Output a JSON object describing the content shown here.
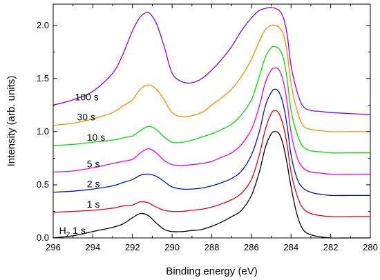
{
  "chart_data": {
    "type": "line",
    "title": "",
    "xlabel": "Binding energy (eV)",
    "ylabel": "Intensity (arb. units)",
    "xlim": [
      296,
      280
    ],
    "x_reversed": true,
    "ylim": [
      0.0,
      2.2
    ],
    "grid": false,
    "legend": "inline labels to the left of each curve",
    "x_ticks": [
      "296",
      "294",
      "292",
      "290",
      "288",
      "286",
      "284",
      "282",
      "280"
    ],
    "y_ticks": [
      "0.0",
      "0.5",
      "1.0",
      "1.5",
      "2.0"
    ],
    "series": [
      {
        "name": "H₂ 1 s",
        "label_parts": {
          "base": "H",
          "sub": "2",
          "rest": " 1 s"
        },
        "color": "#000000",
        "x": [
          296,
          295,
          294,
          293,
          292.5,
          292,
          291.6,
          291.2,
          290.8,
          290.4,
          290,
          289.5,
          289,
          288.5,
          288,
          287.5,
          287,
          286.5,
          286,
          285.6,
          285.3,
          285,
          284.8,
          284.6,
          284.4,
          284.2,
          284,
          283.7,
          283.4,
          283,
          282.5,
          282,
          281,
          280
        ],
        "y": [
          0.0,
          0.02,
          0.06,
          0.1,
          0.13,
          0.19,
          0.23,
          0.21,
          0.14,
          0.08,
          0.06,
          0.06,
          0.07,
          0.08,
          0.11,
          0.15,
          0.2,
          0.26,
          0.4,
          0.62,
          0.85,
          0.98,
          1.0,
          0.98,
          0.88,
          0.7,
          0.48,
          0.22,
          0.08,
          0.03,
          0.01,
          0.0,
          0.0,
          0.0
        ]
      },
      {
        "name": "1 s",
        "color": "#e3000f",
        "x": [
          296,
          295,
          294,
          293,
          292.5,
          292,
          291.6,
          291.2,
          290.8,
          290.4,
          290,
          289.5,
          289,
          288.5,
          288,
          287.5,
          287,
          286.5,
          286,
          285.6,
          285.3,
          285,
          284.8,
          284.6,
          284.4,
          284.2,
          284,
          283.7,
          283.4,
          283,
          282.5,
          282,
          281,
          280
        ],
        "y": [
          0.24,
          0.25,
          0.26,
          0.28,
          0.3,
          0.31,
          0.34,
          0.33,
          0.29,
          0.26,
          0.25,
          0.25,
          0.26,
          0.27,
          0.29,
          0.32,
          0.36,
          0.42,
          0.55,
          0.78,
          1.02,
          1.17,
          1.2,
          1.17,
          1.06,
          0.88,
          0.62,
          0.4,
          0.28,
          0.23,
          0.21,
          0.2,
          0.2,
          0.2
        ]
      },
      {
        "name": "2 s",
        "color": "#0012c8",
        "x": [
          296,
          295,
          294,
          293,
          292.5,
          292,
          291.6,
          291.2,
          290.8,
          290.4,
          290,
          289.5,
          289,
          288.5,
          288,
          287.5,
          287,
          286.5,
          286,
          285.6,
          285.3,
          285,
          284.8,
          284.6,
          284.4,
          284.2,
          284,
          283.7,
          283.4,
          283,
          282.5,
          282,
          281,
          280
        ],
        "y": [
          0.43,
          0.44,
          0.46,
          0.49,
          0.52,
          0.55,
          0.59,
          0.6,
          0.58,
          0.53,
          0.48,
          0.46,
          0.46,
          0.47,
          0.49,
          0.52,
          0.56,
          0.63,
          0.78,
          1.0,
          1.24,
          1.37,
          1.4,
          1.37,
          1.26,
          1.06,
          0.78,
          0.56,
          0.47,
          0.43,
          0.41,
          0.4,
          0.4,
          0.4
        ]
      },
      {
        "name": "5 s",
        "color": "#f000e8",
        "x": [
          296,
          295,
          294,
          293,
          292.5,
          292,
          291.6,
          291.2,
          290.8,
          290.4,
          290,
          289.5,
          289,
          288.5,
          288,
          287.5,
          287,
          286.5,
          286,
          285.6,
          285.3,
          285,
          284.8,
          284.6,
          284.4,
          284.2,
          284,
          283.7,
          283.4,
          283,
          282.5,
          282,
          281,
          280
        ],
        "y": [
          0.62,
          0.63,
          0.66,
          0.7,
          0.72,
          0.74,
          0.8,
          0.84,
          0.8,
          0.73,
          0.69,
          0.68,
          0.69,
          0.7,
          0.72,
          0.76,
          0.8,
          0.88,
          1.02,
          1.24,
          1.46,
          1.58,
          1.6,
          1.58,
          1.48,
          1.28,
          0.99,
          0.76,
          0.66,
          0.62,
          0.61,
          0.6,
          0.6,
          0.6
        ]
      },
      {
        "name": "10 s",
        "color": "#00e000",
        "x": [
          296,
          295,
          294,
          293,
          292.5,
          292,
          291.6,
          291.2,
          290.8,
          290.4,
          290,
          289.5,
          289,
          288.5,
          288,
          287.5,
          287,
          286.5,
          286,
          285.6,
          285.3,
          285,
          284.8,
          284.6,
          284.4,
          284.2,
          284,
          283.7,
          283.4,
          283,
          282.5,
          282,
          281,
          280
        ],
        "y": [
          0.87,
          0.88,
          0.9,
          0.92,
          0.94,
          0.96,
          1.01,
          1.05,
          1.02,
          0.95,
          0.9,
          0.9,
          0.92,
          0.95,
          0.98,
          1.02,
          1.07,
          1.16,
          1.3,
          1.52,
          1.7,
          1.79,
          1.8,
          1.78,
          1.7,
          1.5,
          1.2,
          0.98,
          0.86,
          0.82,
          0.81,
          0.8,
          0.8,
          0.8
        ]
      },
      {
        "name": "30 s",
        "color": "#ff8a00",
        "x": [
          296,
          295,
          294,
          293,
          292.5,
          292,
          291.6,
          291.2,
          290.8,
          290.4,
          290,
          289.5,
          289,
          288.5,
          288,
          287.5,
          287,
          286.5,
          286,
          285.6,
          285.3,
          285,
          284.8,
          284.6,
          284.4,
          284.2,
          284,
          283.7,
          283.4,
          283,
          282.5,
          282,
          281,
          280
        ],
        "y": [
          1.06,
          1.08,
          1.12,
          1.18,
          1.24,
          1.3,
          1.4,
          1.44,
          1.4,
          1.3,
          1.18,
          1.14,
          1.15,
          1.18,
          1.25,
          1.32,
          1.4,
          1.52,
          1.68,
          1.85,
          1.96,
          2.0,
          2.0,
          1.98,
          1.92,
          1.75,
          1.45,
          1.2,
          1.06,
          1.02,
          1.01,
          1.0,
          1.0,
          1.0
        ]
      },
      {
        "name": "100 s",
        "color": "#8a00ff",
        "x": [
          296,
          295,
          294,
          293,
          292.5,
          292,
          291.6,
          291.2,
          290.8,
          290.4,
          290,
          289.5,
          289,
          288.5,
          288,
          287.5,
          287,
          286.5,
          286,
          285.6,
          285.3,
          285,
          284.8,
          284.6,
          284.4,
          284.2,
          284,
          283.7,
          283.4,
          283,
          282.5,
          282,
          281,
          280
        ],
        "y": [
          1.25,
          1.3,
          1.38,
          1.55,
          1.72,
          1.95,
          2.08,
          2.12,
          2.02,
          1.8,
          1.55,
          1.47,
          1.46,
          1.5,
          1.58,
          1.68,
          1.8,
          1.95,
          2.07,
          2.14,
          2.16,
          2.17,
          2.16,
          2.14,
          2.08,
          1.92,
          1.62,
          1.38,
          1.24,
          1.2,
          1.19,
          1.18,
          1.17,
          1.16
        ]
      }
    ]
  }
}
